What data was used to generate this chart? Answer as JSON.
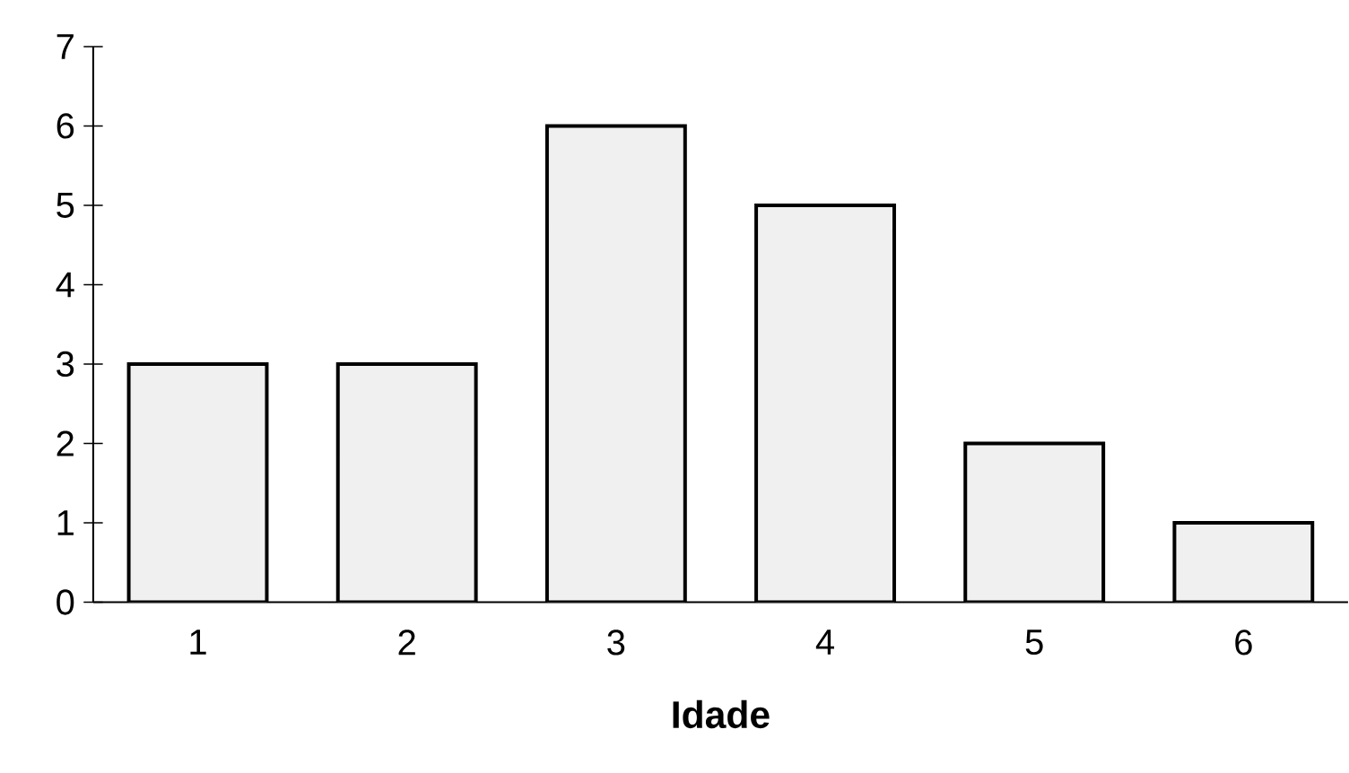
{
  "chart_data": {
    "type": "bar",
    "xlabel": "**Idade**",
    "categories": [
      "1",
      "2",
      "3",
      "4",
      "5",
      "6"
    ],
    "values": [
      3,
      3,
      6,
      5,
      2,
      1
    ],
    "color": "#f0f0f0",
    "ylim": [
      0,
      7
    ],
    "yticks": [
      0,
      1,
      2,
      3,
      4,
      5,
      6,
      7
    ]
  }
}
